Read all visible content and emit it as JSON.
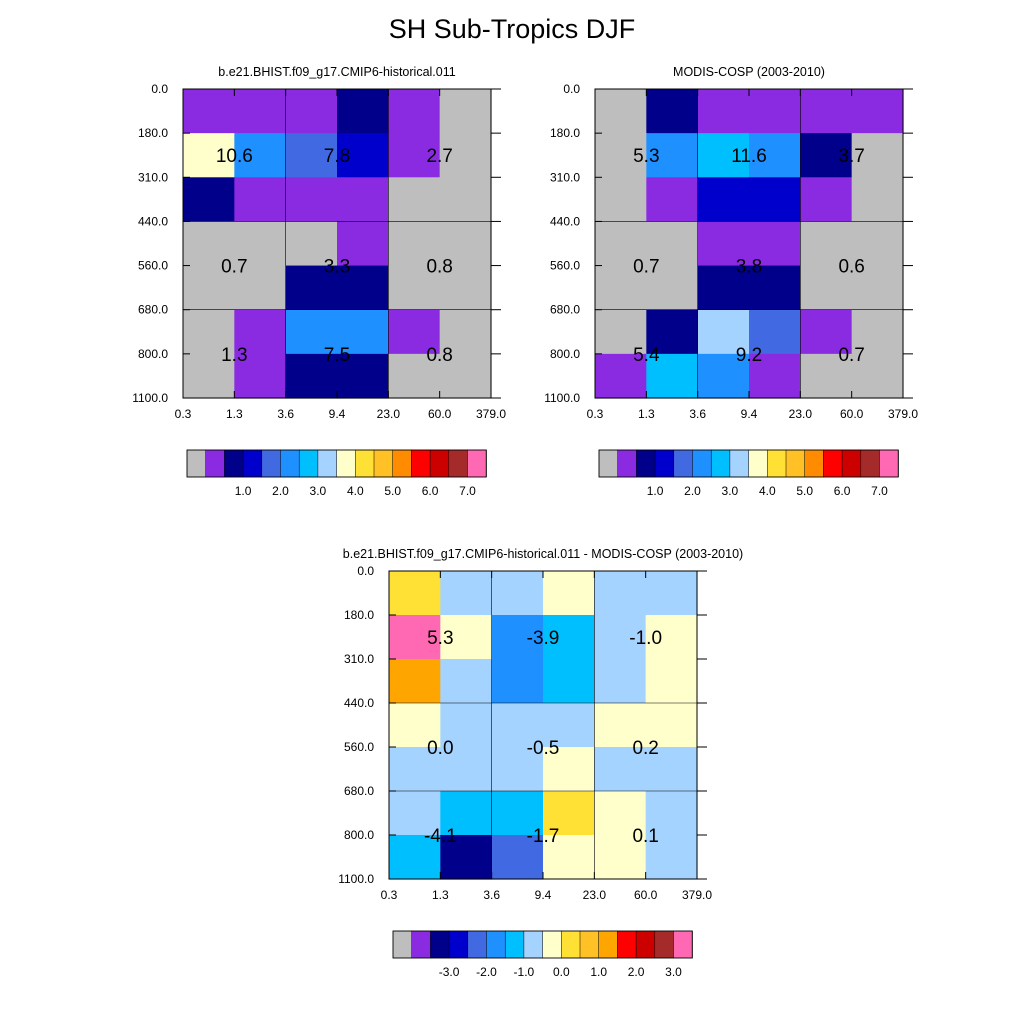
{
  "title": "SH Sub-Tropics DJF",
  "colors": {
    "model_obs_palette": [
      "#BEBEBE",
      "#8A2BE2",
      "#00008B",
      "#0000CD",
      "#4169E1",
      "#1E90FF",
      "#00BFFF",
      "#A4D3FF",
      "#FFFFCC",
      "#FFE135",
      "#FFC125",
      "#FF8C00",
      "#FF0000",
      "#CD0000",
      "#A52A2A",
      "#FF69B4"
    ],
    "diff_palette": [
      "#BEBEBE",
      "#8A2BE2",
      "#00008B",
      "#0000CD",
      "#4169E1",
      "#1E90FF",
      "#00BFFF",
      "#A4D3FF",
      "#FFFFCC",
      "#FFE135",
      "#FFC125",
      "#FFA500",
      "#FF0000",
      "#CD0000",
      "#A52A2A",
      "#FF69B4"
    ],
    "grid_line": "#000000"
  },
  "chart_data": [
    {
      "type": "heatmap",
      "title": "b.e21.BHIST.f09_g17.CMIP6-historical.011",
      "x_ticks": [
        "0.3",
        "1.3",
        "3.6",
        "9.4",
        "23.0",
        "60.0",
        "379.0"
      ],
      "y_ticks": [
        "0.0",
        "180.0",
        "310.0",
        "440.0",
        "560.0",
        "680.0",
        "800.0",
        "1100.0"
      ],
      "cells": [
        [
          1,
          1,
          1,
          2,
          1,
          0
        ],
        [
          8,
          5,
          4,
          3,
          1,
          0
        ],
        [
          2,
          1,
          1,
          1,
          0,
          0
        ],
        [
          0,
          0,
          0,
          1,
          0,
          0
        ],
        [
          0,
          0,
          2,
          2,
          0,
          0
        ],
        [
          0,
          1,
          5,
          5,
          1,
          0
        ],
        [
          0,
          1,
          2,
          2,
          0,
          0
        ]
      ],
      "block_values": [
        [
          "10.6",
          "7.8",
          "2.7"
        ],
        [
          "0.7",
          "3.3",
          "0.8"
        ],
        [
          "1.3",
          "7.5",
          "0.8"
        ]
      ],
      "colorbar_labels": [
        "1.0",
        "2.0",
        "3.0",
        "4.0",
        "5.0",
        "6.0",
        "7.0"
      ]
    },
    {
      "type": "heatmap",
      "title": "MODIS-COSP (2003-2010)",
      "x_ticks": [
        "0.3",
        "1.3",
        "3.6",
        "9.4",
        "23.0",
        "60.0",
        "379.0"
      ],
      "y_ticks": [
        "0.0",
        "180.0",
        "310.0",
        "440.0",
        "560.0",
        "680.0",
        "800.0",
        "1100.0"
      ],
      "cells": [
        [
          0,
          2,
          1,
          1,
          1,
          1
        ],
        [
          0,
          5,
          6,
          5,
          2,
          0
        ],
        [
          0,
          1,
          3,
          3,
          1,
          0
        ],
        [
          0,
          0,
          1,
          1,
          0,
          0
        ],
        [
          0,
          0,
          2,
          2,
          0,
          0
        ],
        [
          0,
          2,
          7,
          4,
          1,
          0
        ],
        [
          1,
          6,
          5,
          1,
          0,
          0
        ]
      ],
      "block_values": [
        [
          "5.3",
          "11.6",
          "3.7"
        ],
        [
          "0.7",
          "3.8",
          "0.6"
        ],
        [
          "5.4",
          "9.2",
          "0.7"
        ]
      ],
      "colorbar_labels": [
        "1.0",
        "2.0",
        "3.0",
        "4.0",
        "5.0",
        "6.0",
        "7.0"
      ]
    },
    {
      "type": "heatmap",
      "title": "b.e21.BHIST.f09_g17.CMIP6-historical.011 - MODIS-COSP (2003-2010)",
      "x_ticks": [
        "0.3",
        "1.3",
        "3.6",
        "9.4",
        "23.0",
        "60.0",
        "379.0"
      ],
      "y_ticks": [
        "0.0",
        "180.0",
        "310.0",
        "440.0",
        "560.0",
        "680.0",
        "800.0",
        "1100.0"
      ],
      "cells": [
        [
          9,
          7,
          7,
          8,
          7,
          7
        ],
        [
          15,
          8,
          5,
          6,
          7,
          8
        ],
        [
          11,
          7,
          5,
          6,
          7,
          8
        ],
        [
          8,
          7,
          7,
          7,
          8,
          8
        ],
        [
          7,
          7,
          7,
          8,
          7,
          7
        ],
        [
          7,
          6,
          6,
          9,
          8,
          7
        ],
        [
          6,
          2,
          4,
          8,
          8,
          7
        ]
      ],
      "block_values": [
        [
          "5.3",
          "-3.9",
          "-1.0"
        ],
        [
          "0.0",
          "-0.5",
          "0.2"
        ],
        [
          "-4.1",
          "-1.7",
          "0.1"
        ]
      ],
      "colorbar_labels": [
        "-3.0",
        "-2.0",
        "-1.0",
        "0.0",
        "1.0",
        "2.0",
        "3.0"
      ]
    }
  ]
}
